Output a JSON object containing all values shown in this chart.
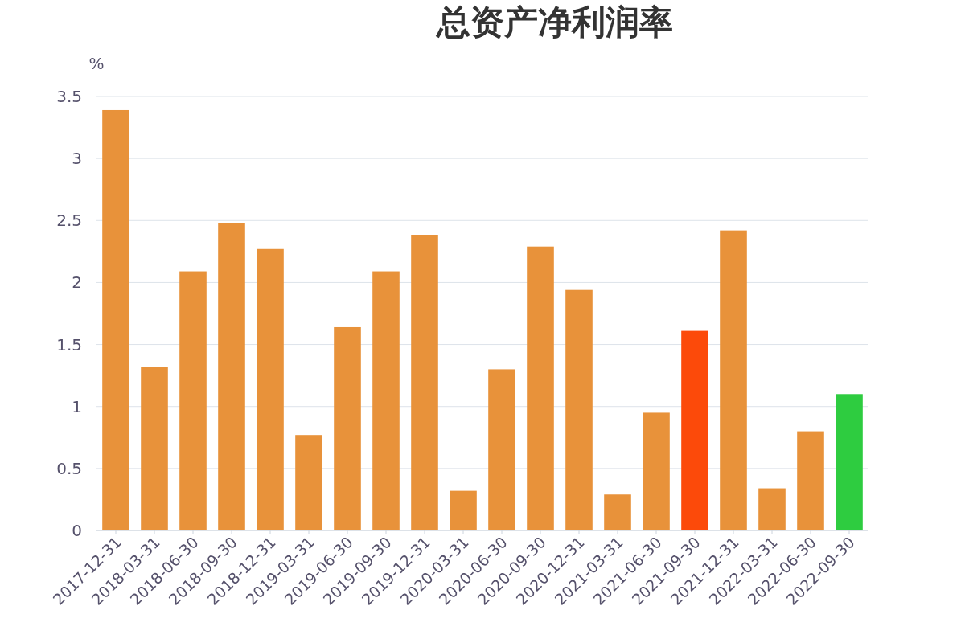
{
  "chart_data": {
    "type": "bar",
    "title": "总资产净利润率",
    "ylabel": "%",
    "categories": [
      "2017-12-31",
      "2018-03-31",
      "2018-06-30",
      "2018-09-30",
      "2018-12-31",
      "2019-03-31",
      "2019-06-30",
      "2019-09-30",
      "2019-12-31",
      "2020-03-31",
      "2020-06-30",
      "2020-09-30",
      "2020-12-31",
      "2021-03-31",
      "2021-06-30",
      "2021-09-30",
      "2021-12-31",
      "2022-03-31",
      "2022-06-30",
      "2022-09-30"
    ],
    "values": [
      3.39,
      1.32,
      2.09,
      2.48,
      2.27,
      0.77,
      1.64,
      2.09,
      2.38,
      0.32,
      1.3,
      2.29,
      1.94,
      0.29,
      0.95,
      1.61,
      2.42,
      0.34,
      0.8,
      1.1
    ],
    "colors": [
      "#e8923a",
      "#e8923a",
      "#e8923a",
      "#e8923a",
      "#e8923a",
      "#e8923a",
      "#e8923a",
      "#e8923a",
      "#e8923a",
      "#e8923a",
      "#e8923a",
      "#e8923a",
      "#e8923a",
      "#e8923a",
      "#e8923a",
      "#fc4a0a",
      "#e8923a",
      "#e8923a",
      "#e8923a",
      "#2ecc40"
    ],
    "ylim": [
      0,
      3.5
    ],
    "yticks": [
      0,
      0.5,
      1,
      1.5,
      2,
      2.5,
      3,
      3.5
    ],
    "grid": "y"
  }
}
